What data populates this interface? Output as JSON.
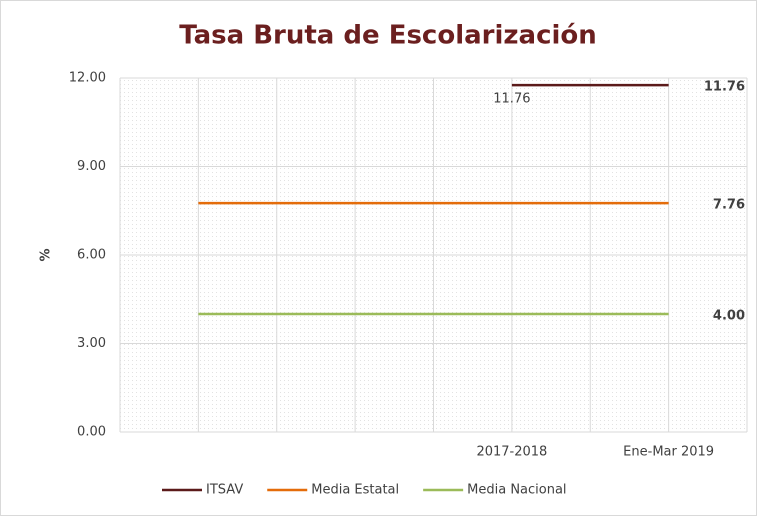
{
  "chart_data": {
    "type": "line",
    "title": "Tasa Bruta de Escolarización",
    "y_label": "%",
    "categories": [
      null,
      null,
      null,
      null,
      "2017-2018",
      null,
      "Ene-Mar 2019"
    ],
    "series": [
      {
        "name": "ITSAV",
        "color": "#5b1a1a",
        "values": [
          null,
          null,
          null,
          null,
          11.76,
          11.76,
          11.76
        ],
        "value_labels": [
          null,
          null,
          null,
          null,
          "11.76",
          null,
          "11.76"
        ]
      },
      {
        "name": "Media Estatal",
        "color": "#e46c0a",
        "values": [
          7.76,
          7.76,
          7.76,
          7.76,
          7.76,
          7.76,
          7.76
        ],
        "value_labels": [
          null,
          null,
          null,
          null,
          null,
          null,
          "7.76"
        ]
      },
      {
        "name": "Media Nacional",
        "color": "#9bbb59",
        "values": [
          4,
          4,
          4,
          4,
          4,
          4,
          4
        ],
        "value_labels": [
          null,
          null,
          null,
          null,
          null,
          null,
          "4.00"
        ]
      }
    ],
    "ylim": [
      0,
      12
    ],
    "yticks": [
      {
        "value": 0,
        "label": "0.00"
      },
      {
        "value": 3,
        "label": "3.00"
      },
      {
        "value": 6,
        "label": "6.00"
      },
      {
        "value": 9,
        "label": "9.00"
      },
      {
        "value": 12,
        "label": "12.00"
      }
    ],
    "grid": true,
    "legend": "bottom"
  }
}
